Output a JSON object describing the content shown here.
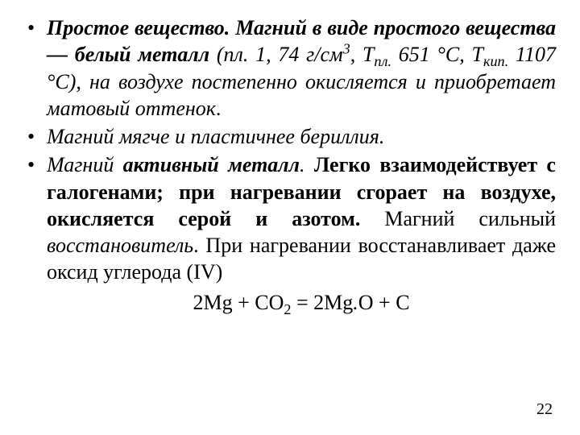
{
  "style": {
    "background_color": "#ffffff",
    "text_color": "#000000",
    "font_family": "Times New Roman",
    "body_fontsize_pt": 20,
    "line_height": 1.28,
    "bullet_glyph": "•",
    "text_align": "justify"
  },
  "bullets": [
    {
      "runs": [
        {
          "text": "Простое вещество. Магний в виде простого вещества — белый металл",
          "style": "bi"
        },
        {
          "text": " (пл. 1, 74 г/см",
          "style": "i"
        },
        {
          "text": "3",
          "style": "i",
          "sup": true
        },
        {
          "text": ", Т",
          "style": "i"
        },
        {
          "text": "пл.",
          "style": "i",
          "sub": true
        },
        {
          "text": " 651 °С, Т",
          "style": "i"
        },
        {
          "text": "кип.",
          "style": "i",
          "sub": true
        },
        {
          "text": " 1107 °С), ",
          "style": "i"
        },
        {
          "text": "на воздухе постепенно окисляется и приобретает матовый оттенок",
          "style": "i"
        },
        {
          "text": ".",
          "style": ""
        }
      ]
    },
    {
      "runs": [
        {
          "text": "Магний  мягче и пластичнее бериллия.",
          "style": "i"
        }
      ]
    },
    {
      "runs": [
        {
          "text": "Магний ",
          "style": "i"
        },
        {
          "text": "активный металл",
          "style": "bi"
        },
        {
          "text": ". ",
          "style": "i"
        },
        {
          "text": "Легко взаимодействует с галогенами; при нагревании сгорает на воздухе, окисляется серой и азотом.",
          "style": "b"
        },
        {
          "text": " Магний сильный ",
          "style": ""
        },
        {
          "text": "восстановитель",
          "style": "i"
        },
        {
          "text": ". При нагревании восстанавливает даже оксид углерода (IV)",
          "style": ""
        }
      ]
    }
  ],
  "equation": {
    "runs": [
      {
        "text": "2Mg  + CO",
        "style": ""
      },
      {
        "text": "2",
        "style": "",
        "sub": true
      },
      {
        "text": " =  2Mg",
        "style": ""
      },
      {
        "text": ".",
        "style": "i"
      },
      {
        "text": "O + C",
        "style": ""
      }
    ]
  },
  "page_number": "22"
}
